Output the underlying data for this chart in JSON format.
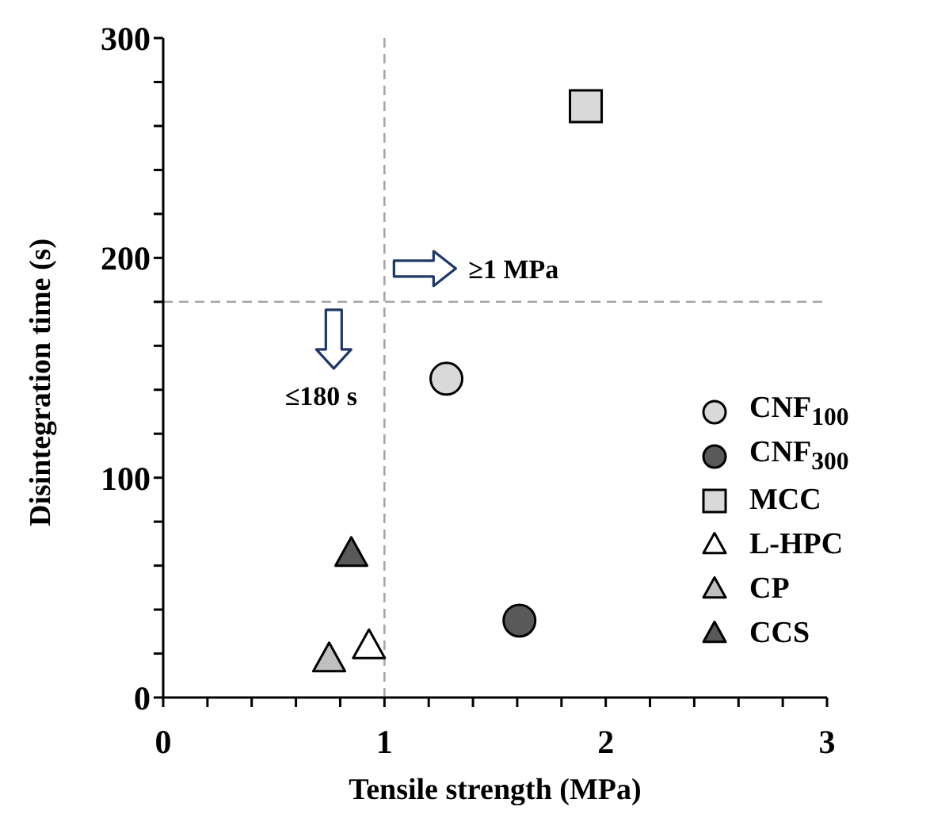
{
  "chart_data": {
    "type": "scatter",
    "xlabel": "Tensile strength (MPa)",
    "ylabel": "Disintegration time (s)",
    "xlim": [
      0,
      3
    ],
    "ylim": [
      0,
      300
    ],
    "xticks": [
      0,
      {
        "value": 0.2,
        "label": null
      },
      {
        "value": 0.4,
        "label": null
      },
      {
        "value": 0.6,
        "label": null
      },
      {
        "value": 0.8,
        "label": null
      },
      1,
      {
        "value": 1.2,
        "label": null
      },
      {
        "value": 1.4,
        "label": null
      },
      {
        "value": 1.6,
        "label": null
      },
      {
        "value": 1.8,
        "label": null
      },
      2,
      {
        "value": 2.2,
        "label": null
      },
      {
        "value": 2.4,
        "label": null
      },
      {
        "value": 2.6,
        "label": null
      },
      {
        "value": 2.8,
        "label": null
      },
      3
    ],
    "yticks": [
      0,
      {
        "value": 20,
        "label": null
      },
      {
        "value": 40,
        "label": null
      },
      {
        "value": 60,
        "label": null
      },
      {
        "value": 80,
        "label": null
      },
      100,
      {
        "value": 120,
        "label": null
      },
      {
        "value": 140,
        "label": null
      },
      {
        "value": 160,
        "label": null
      },
      {
        "value": 180,
        "label": null
      },
      200,
      {
        "value": 220,
        "label": null
      },
      {
        "value": 240,
        "label": null
      },
      {
        "value": 260,
        "label": null
      },
      {
        "value": 280,
        "label": null
      },
      300
    ],
    "legend": "bottom right",
    "ref_lines": [
      {
        "axis": "x",
        "value": 1,
        "color": "#a6a6a6",
        "line_style": "dashed"
      },
      {
        "axis": "y",
        "value": 180,
        "color": "#a6a6a6",
        "line_style": "dashed"
      }
    ],
    "annotations": [
      "≥1 MPa",
      "≤180 s"
    ],
    "series": [
      {
        "name": "CNF$_{100}$",
        "color": "#d9d9d9",
        "marker": "circle",
        "x": [
          1.28
        ],
        "values": [
          145
        ]
      },
      {
        "name": "CNF$_{300}$",
        "color": "#595959",
        "marker": "circle",
        "x": [
          1.61
        ],
        "values": [
          35
        ]
      },
      {
        "name": "MCC",
        "color": "#d9d9d9",
        "marker": "square",
        "x": [
          1.91
        ],
        "values": [
          269
        ]
      },
      {
        "name": "L-HPC",
        "color": "#ffffff",
        "marker": "triangle",
        "x": [
          0.93
        ],
        "values": [
          23
        ]
      },
      {
        "name": "CP",
        "color": "#bfbfbf",
        "marker": "triangle",
        "x": [
          0.75
        ],
        "values": [
          17
        ]
      },
      {
        "name": "CCS",
        "color": "#595959",
        "marker": "triangle",
        "x": [
          0.85
        ],
        "values": [
          65
        ]
      }
    ]
  }
}
